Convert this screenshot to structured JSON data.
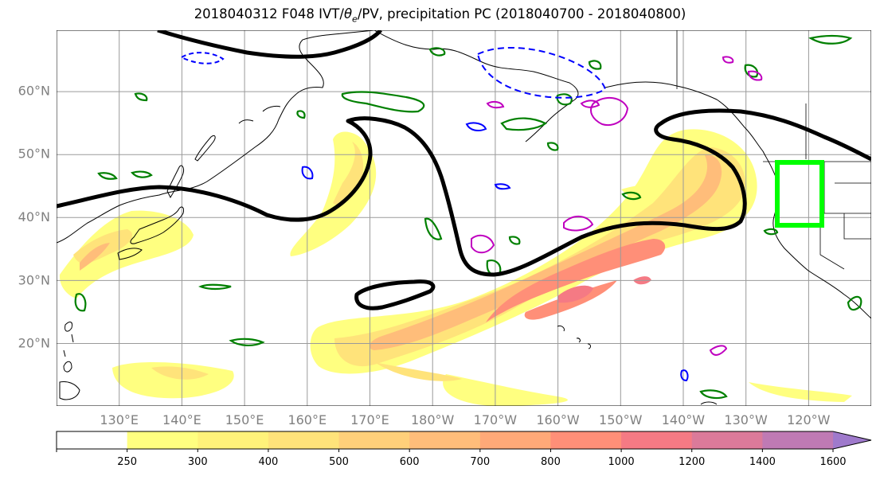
{
  "title": {
    "before": "2018040312 F048 IVT/",
    "theta": "θ",
    "theta_sub": "e",
    "after": "/PV, precipitation PC (2018040700 - 2018040800)"
  },
  "map": {
    "projection": "Plate Carree (cylindrical)",
    "extent": {
      "lon_min": 120,
      "lon_max": 250,
      "lat_min": 10,
      "lat_max": 69.5
    },
    "latitude_ticks": [
      {
        "lat": 20,
        "label": "20°N"
      },
      {
        "lat": 30,
        "label": "30°N"
      },
      {
        "lat": 40,
        "label": "40°N"
      },
      {
        "lat": 50,
        "label": "50°N"
      },
      {
        "lat": 60,
        "label": "60°N"
      }
    ],
    "longitude_ticks": [
      {
        "lon": 130,
        "label": "130°E"
      },
      {
        "lon": 140,
        "label": "140°E"
      },
      {
        "lon": 150,
        "label": "150°E"
      },
      {
        "lon": 160,
        "label": "160°E"
      },
      {
        "lon": 170,
        "label": "170°E"
      },
      {
        "lon": 180,
        "label": "180°W"
      },
      {
        "lon": 190,
        "label": "170°W"
      },
      {
        "lon": 200,
        "label": "160°W"
      },
      {
        "lon": 210,
        "label": "150°W"
      },
      {
        "lon": 220,
        "label": "140°W"
      },
      {
        "lon": 230,
        "label": "130°W"
      },
      {
        "lon": 240,
        "label": "120°W"
      }
    ],
    "gridlines": true,
    "highlight_box": {
      "lon_min": 233,
      "lon_max": 240,
      "lat_min": 38.5,
      "lat_max": 49,
      "color": "#00ff00"
    },
    "legend": "none",
    "layers": {
      "ivt": "filled contours (shaded by colorbar)",
      "pv_contour": {
        "color": "#000000"
      },
      "precip_pc_positive": {
        "color": "#008000"
      },
      "precip_pc_negative": {
        "color": "#0000ff"
      },
      "theta_e": {
        "color": "#bf00bf"
      }
    }
  },
  "colorbar": {
    "levels": [
      250,
      300,
      400,
      500,
      600,
      700,
      800,
      1000,
      1200,
      1400,
      1600
    ],
    "colors": [
      "#ffff80",
      "#fff27a",
      "#ffe37a",
      "#ffd07a",
      "#ffbd7a",
      "#ffa978",
      "#ff8f78",
      "#f57a84",
      "#db7a9a",
      "#bf7ab4",
      "#a67ac6"
    ],
    "extend": "max",
    "arrow_color": "#9f7acc"
  }
}
